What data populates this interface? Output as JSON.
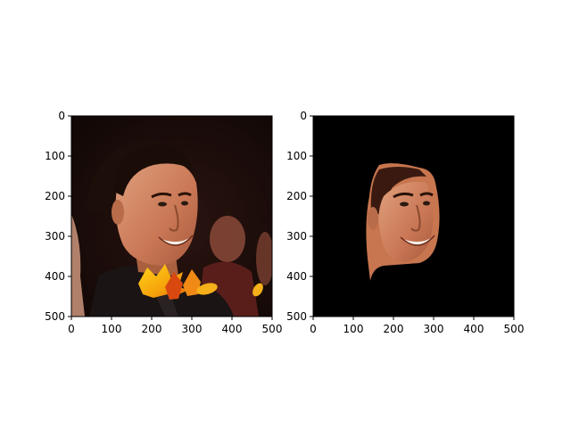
{
  "chart_data": [
    {
      "type": "image",
      "content": "photo of a smiling man with dark hair in a dark jacket, crowd in background, autumn-leaf cluster near his chin",
      "xlim": [
        0,
        500
      ],
      "ylim": [
        500,
        0
      ],
      "xticks": [
        0,
        100,
        200,
        300,
        400,
        500
      ],
      "yticks": [
        0,
        100,
        200,
        300,
        400,
        500
      ],
      "xtick_labels": [
        "0",
        "100",
        "200",
        "300",
        "400",
        "500"
      ],
      "ytick_labels": [
        "0",
        "100",
        "200",
        "300",
        "400",
        "500"
      ],
      "title": "",
      "xlabel": "",
      "ylabel": ""
    },
    {
      "type": "image",
      "content": "segmentation mask: same face isolated on a black background",
      "xlim": [
        0,
        500
      ],
      "ylim": [
        500,
        0
      ],
      "xticks": [
        0,
        100,
        200,
        300,
        400,
        500
      ],
      "yticks": [
        0,
        100,
        200,
        300,
        400,
        500
      ],
      "xtick_labels": [
        "0",
        "100",
        "200",
        "300",
        "400",
        "500"
      ],
      "ytick_labels": [
        "0",
        "100",
        "200",
        "300",
        "400",
        "500"
      ],
      "title": "",
      "xlabel": "",
      "ylabel": ""
    }
  ]
}
